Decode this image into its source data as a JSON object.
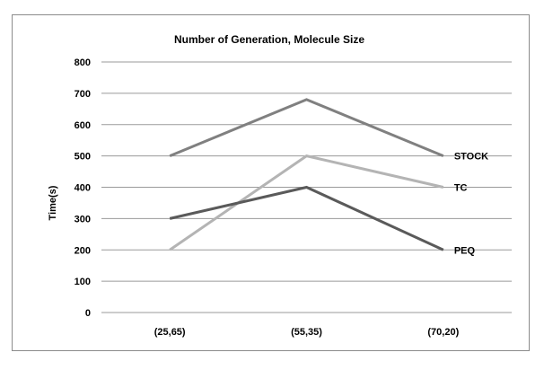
{
  "chart_data": {
    "type": "line",
    "title": "Number of Generation, Molecule Size",
    "xlabel": "",
    "ylabel": "Time(s)",
    "categories": [
      "(25,65)",
      "(55,35)",
      "(70,20)"
    ],
    "ylim": [
      0,
      800
    ],
    "yticks": [
      0,
      100,
      200,
      300,
      400,
      500,
      600,
      700,
      800
    ],
    "grid": true,
    "legend": "series labels at right end of lines",
    "series": [
      {
        "name": "STOCK",
        "values": [
          500,
          680,
          500
        ],
        "color": "#808080"
      },
      {
        "name": "TC",
        "values": [
          200,
          500,
          400
        ],
        "color": "#b4b4b4"
      },
      {
        "name": "PEQ",
        "values": [
          300,
          400,
          200
        ],
        "color": "#5a5a5a"
      }
    ]
  }
}
